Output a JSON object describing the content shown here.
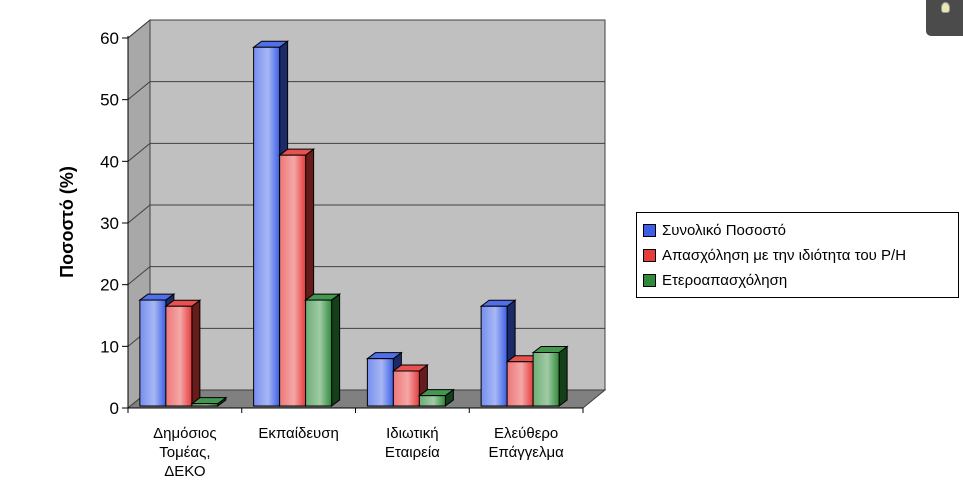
{
  "chart_data": {
    "type": "bar",
    "style": "3d-clustered",
    "title": "",
    "xlabel": "",
    "ylabel": "Ποσοστό (%)",
    "ylim": [
      0,
      60
    ],
    "yticks": [
      0,
      10,
      20,
      30,
      40,
      50,
      60
    ],
    "grid": true,
    "legend_position": "right",
    "categories": [
      [
        "Δημόσιος",
        "Τομέας,",
        "ΔΕΚΟ"
      ],
      [
        "Εκπαίδευση"
      ],
      [
        "Ιδιωτική",
        "Εταιρεία"
      ],
      [
        "Ελεύθερο",
        "Επάγγελμα"
      ]
    ],
    "series": [
      {
        "name": "Συνολικό Ποσοστό",
        "color": "#3c5fe6",
        "values": [
          17.5,
          58.5,
          8,
          16.5
        ]
      },
      {
        "name": "Απασχόληση με την ιδιότητα του Ρ/Η",
        "color": "#e63c3c",
        "values": [
          16.5,
          41,
          6,
          7.5
        ]
      },
      {
        "name": "Ετεροαπασχόληση",
        "color": "#2e8b3a",
        "values": [
          0.7,
          17.5,
          2,
          9
        ]
      }
    ]
  },
  "corner_widget": {
    "icon": "lightbulb-icon"
  }
}
